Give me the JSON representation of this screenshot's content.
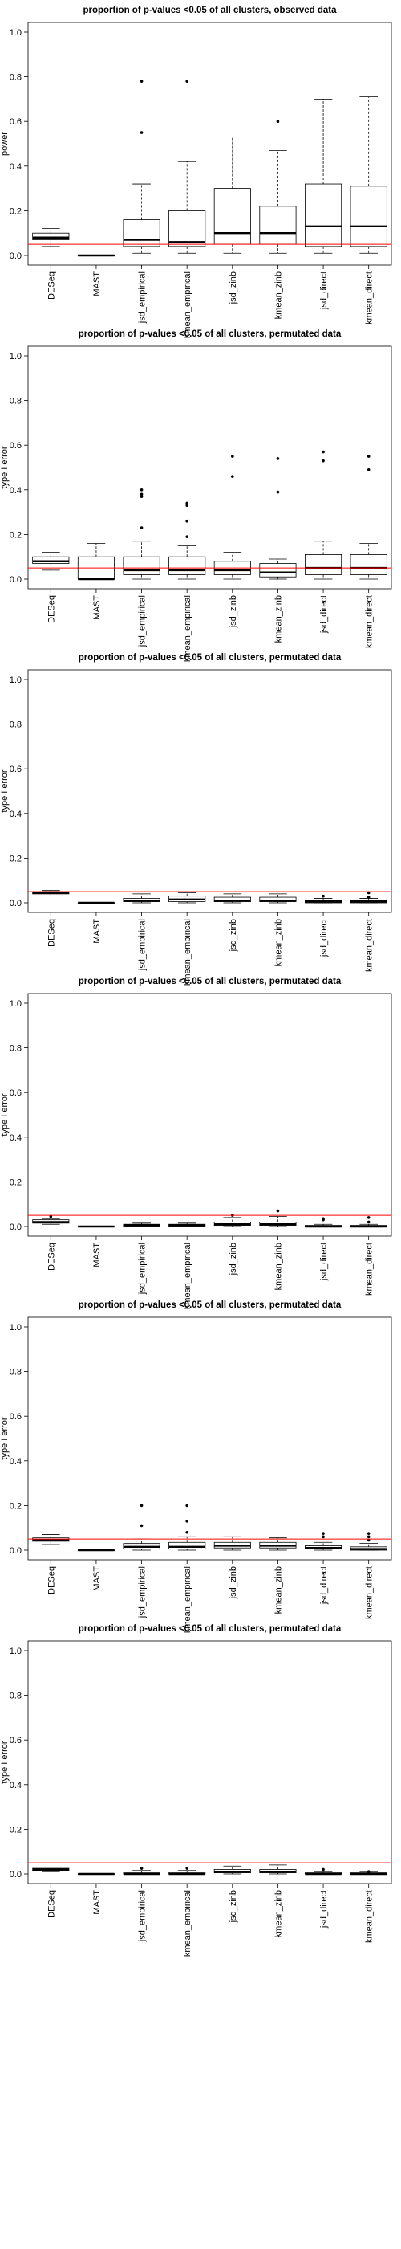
{
  "colors": {
    "reference_line": "#ff0000",
    "box_stroke": "#000000",
    "background": "#ffffff"
  },
  "categories": [
    "DESeq",
    "MAST",
    "jsd_empirical",
    "kmean_empirical",
    "jsd_zinb",
    "kmean_zinb",
    "jsd_direct",
    "kmean_direct"
  ],
  "chart_data": [
    {
      "type": "boxplot",
      "title": "proportion of p-values <0.05 of all clusters, observed data",
      "ylabel": "power",
      "ylim": [
        0,
        1
      ],
      "yticks": [
        "0.0",
        "0.2",
        "0.4",
        "0.6",
        "0.8",
        "1.0"
      ],
      "hline": 0.05,
      "boxes": [
        {
          "min": 0.04,
          "q1": 0.07,
          "median": 0.08,
          "q3": 0.1,
          "max": 0.12,
          "outliers": []
        },
        {
          "min": 0.0,
          "q1": 0.0,
          "median": 0.0,
          "q3": 0.0,
          "max": 0.0,
          "outliers": []
        },
        {
          "min": 0.01,
          "q1": 0.04,
          "median": 0.07,
          "q3": 0.16,
          "max": 0.32,
          "outliers": [
            0.55,
            0.78
          ]
        },
        {
          "min": 0.01,
          "q1": 0.04,
          "median": 0.06,
          "q3": 0.2,
          "max": 0.42,
          "outliers": [
            0.78
          ]
        },
        {
          "min": 0.01,
          "q1": 0.05,
          "median": 0.1,
          "q3": 0.3,
          "max": 0.53,
          "outliers": []
        },
        {
          "min": 0.01,
          "q1": 0.05,
          "median": 0.1,
          "q3": 0.22,
          "max": 0.47,
          "outliers": [
            0.6
          ]
        },
        {
          "min": 0.01,
          "q1": 0.04,
          "median": 0.13,
          "q3": 0.32,
          "max": 0.7,
          "outliers": []
        },
        {
          "min": 0.01,
          "q1": 0.04,
          "median": 0.13,
          "q3": 0.31,
          "max": 0.71,
          "outliers": []
        }
      ]
    },
    {
      "type": "boxplot",
      "title": "proportion of p-values <0.05 of all clusters, permutated data",
      "ylabel": "type I error",
      "ylim": [
        0,
        1
      ],
      "yticks": [
        "0.0",
        "0.2",
        "0.4",
        "0.6",
        "0.8",
        "1.0"
      ],
      "hline": 0.05,
      "boxes": [
        {
          "min": 0.04,
          "q1": 0.07,
          "median": 0.08,
          "q3": 0.1,
          "max": 0.12,
          "outliers": []
        },
        {
          "min": 0.0,
          "q1": 0.0,
          "median": 0.0,
          "q3": 0.1,
          "max": 0.16,
          "outliers": []
        },
        {
          "min": 0.0,
          "q1": 0.02,
          "median": 0.04,
          "q3": 0.1,
          "max": 0.17,
          "outliers": [
            0.23,
            0.37,
            0.38,
            0.4
          ]
        },
        {
          "min": 0.0,
          "q1": 0.02,
          "median": 0.04,
          "q3": 0.1,
          "max": 0.15,
          "outliers": [
            0.19,
            0.26,
            0.33,
            0.34
          ]
        },
        {
          "min": 0.0,
          "q1": 0.02,
          "median": 0.04,
          "q3": 0.08,
          "max": 0.12,
          "outliers": [
            0.46,
            0.55
          ]
        },
        {
          "min": 0.0,
          "q1": 0.01,
          "median": 0.03,
          "q3": 0.07,
          "max": 0.09,
          "outliers": [
            0.39,
            0.54
          ]
        },
        {
          "min": 0.0,
          "q1": 0.02,
          "median": 0.05,
          "q3": 0.11,
          "max": 0.17,
          "outliers": [
            0.53,
            0.57
          ]
        },
        {
          "min": 0.0,
          "q1": 0.02,
          "median": 0.05,
          "q3": 0.11,
          "max": 0.16,
          "outliers": [
            0.49,
            0.55
          ]
        }
      ]
    },
    {
      "type": "boxplot",
      "title": "proportion of p-values <0.05 of all clusters, permutated data",
      "ylabel": "type I error",
      "ylim": [
        0,
        1
      ],
      "yticks": [
        "0.0",
        "0.2",
        "0.4",
        "0.6",
        "0.8",
        "1.0"
      ],
      "hline": 0.05,
      "boxes": [
        {
          "min": 0.03,
          "q1": 0.04,
          "median": 0.045,
          "q3": 0.05,
          "max": 0.055,
          "outliers": []
        },
        {
          "min": 0.0,
          "q1": 0.0,
          "median": 0.0,
          "q3": 0.0,
          "max": 0.0,
          "outliers": []
        },
        {
          "min": 0.0,
          "q1": 0.005,
          "median": 0.01,
          "q3": 0.02,
          "max": 0.04,
          "outliers": []
        },
        {
          "min": 0.0,
          "q1": 0.005,
          "median": 0.015,
          "q3": 0.03,
          "max": 0.045,
          "outliers": []
        },
        {
          "min": 0.0,
          "q1": 0.005,
          "median": 0.01,
          "q3": 0.025,
          "max": 0.04,
          "outliers": []
        },
        {
          "min": 0.0,
          "q1": 0.005,
          "median": 0.01,
          "q3": 0.025,
          "max": 0.04,
          "outliers": []
        },
        {
          "min": 0.0,
          "q1": 0.0,
          "median": 0.005,
          "q3": 0.01,
          "max": 0.02,
          "outliers": [
            0.03
          ]
        },
        {
          "min": 0.0,
          "q1": 0.0,
          "median": 0.005,
          "q3": 0.01,
          "max": 0.02,
          "outliers": [
            0.025,
            0.045
          ]
        }
      ]
    },
    {
      "type": "boxplot",
      "title": "proportion of p-values <0.05 of all clusters, permutated data",
      "ylabel": "type I error",
      "ylim": [
        0,
        1
      ],
      "yticks": [
        "0.0",
        "0.2",
        "0.4",
        "0.6",
        "0.8",
        "1.0"
      ],
      "hline": 0.05,
      "boxes": [
        {
          "min": 0.01,
          "q1": 0.015,
          "median": 0.02,
          "q3": 0.03,
          "max": 0.035,
          "outliers": [
            0.045
          ]
        },
        {
          "min": 0.0,
          "q1": 0.0,
          "median": 0.0,
          "q3": 0.0,
          "max": 0.0,
          "outliers": []
        },
        {
          "min": 0.0,
          "q1": 0.0,
          "median": 0.005,
          "q3": 0.01,
          "max": 0.015,
          "outliers": []
        },
        {
          "min": 0.0,
          "q1": 0.0,
          "median": 0.005,
          "q3": 0.01,
          "max": 0.015,
          "outliers": []
        },
        {
          "min": 0.0,
          "q1": 0.005,
          "median": 0.01,
          "q3": 0.02,
          "max": 0.04,
          "outliers": [
            0.05
          ]
        },
        {
          "min": 0.0,
          "q1": 0.005,
          "median": 0.01,
          "q3": 0.02,
          "max": 0.045,
          "outliers": [
            0.07
          ]
        },
        {
          "min": 0.0,
          "q1": 0.0,
          "median": 0.0,
          "q3": 0.005,
          "max": 0.01,
          "outliers": [
            0.03,
            0.035
          ]
        },
        {
          "min": 0.0,
          "q1": 0.0,
          "median": 0.0,
          "q3": 0.005,
          "max": 0.01,
          "outliers": [
            0.02,
            0.04
          ]
        }
      ]
    },
    {
      "type": "boxplot",
      "title": "proportion of p-values <0.05 of all clusters, permutated data",
      "ylabel": "type I error",
      "ylim": [
        0,
        1
      ],
      "yticks": [
        "0.0",
        "0.2",
        "0.4",
        "0.6",
        "0.8",
        "1.0"
      ],
      "hline": 0.05,
      "boxes": [
        {
          "min": 0.025,
          "q1": 0.04,
          "median": 0.045,
          "q3": 0.055,
          "max": 0.07,
          "outliers": []
        },
        {
          "min": 0.0,
          "q1": 0.0,
          "median": 0.0,
          "q3": 0.0,
          "max": 0.0,
          "outliers": []
        },
        {
          "min": 0.0,
          "q1": 0.005,
          "median": 0.015,
          "q3": 0.03,
          "max": 0.05,
          "outliers": [
            0.11,
            0.2
          ]
        },
        {
          "min": 0.0,
          "q1": 0.005,
          "median": 0.015,
          "q3": 0.035,
          "max": 0.06,
          "outliers": [
            0.08,
            0.13,
            0.2
          ]
        },
        {
          "min": 0.0,
          "q1": 0.01,
          "median": 0.02,
          "q3": 0.035,
          "max": 0.06,
          "outliers": []
        },
        {
          "min": 0.0,
          "q1": 0.01,
          "median": 0.02,
          "q3": 0.035,
          "max": 0.055,
          "outliers": []
        },
        {
          "min": 0.0,
          "q1": 0.005,
          "median": 0.01,
          "q3": 0.02,
          "max": 0.035,
          "outliers": [
            0.06,
            0.075
          ]
        },
        {
          "min": 0.0,
          "q1": 0.0,
          "median": 0.005,
          "q3": 0.015,
          "max": 0.03,
          "outliers": [
            0.045,
            0.06,
            0.075
          ]
        }
      ]
    },
    {
      "type": "boxplot",
      "title": "proportion of p-values <0.05 of all clusters, permutated data",
      "ylabel": "type I error",
      "ylim": [
        0,
        1
      ],
      "yticks": [
        "0.0",
        "0.2",
        "0.4",
        "0.6",
        "0.8",
        "1.0"
      ],
      "hline": 0.05,
      "boxes": [
        {
          "min": 0.01,
          "q1": 0.015,
          "median": 0.02,
          "q3": 0.025,
          "max": 0.03,
          "outliers": []
        },
        {
          "min": 0.0,
          "q1": 0.0,
          "median": 0.0,
          "q3": 0.0,
          "max": 0.0,
          "outliers": []
        },
        {
          "min": 0.0,
          "q1": 0.0,
          "median": 0.0,
          "q3": 0.005,
          "max": 0.015,
          "outliers": [
            0.025
          ]
        },
        {
          "min": 0.0,
          "q1": 0.0,
          "median": 0.0,
          "q3": 0.005,
          "max": 0.015,
          "outliers": [
            0.025
          ]
        },
        {
          "min": 0.0,
          "q1": 0.005,
          "median": 0.01,
          "q3": 0.02,
          "max": 0.035,
          "outliers": []
        },
        {
          "min": 0.0,
          "q1": 0.005,
          "median": 0.01,
          "q3": 0.02,
          "max": 0.04,
          "outliers": []
        },
        {
          "min": 0.0,
          "q1": 0.0,
          "median": 0.0,
          "q3": 0.005,
          "max": 0.01,
          "outliers": [
            0.02
          ]
        },
        {
          "min": 0.0,
          "q1": 0.0,
          "median": 0.0,
          "q3": 0.005,
          "max": 0.01,
          "outliers": [
            0.01
          ]
        }
      ]
    }
  ]
}
